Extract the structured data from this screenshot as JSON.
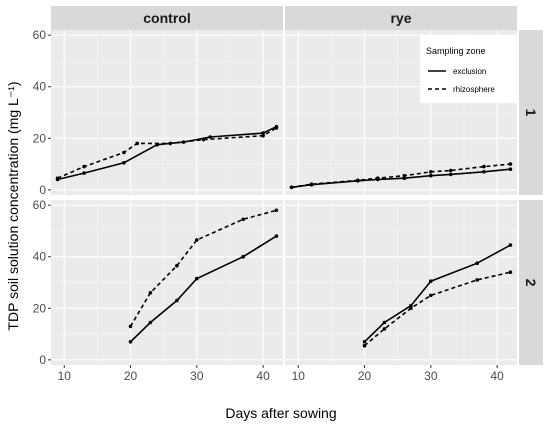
{
  "chart_data": {
    "type": "line",
    "xlabel": "Days after sowing",
    "ylabel": "TDP soil solution concentration (mg L⁻¹)",
    "xlim": [
      8,
      43
    ],
    "xticks": [
      10,
      20,
      30,
      40
    ],
    "ylim": [
      -2,
      62
    ],
    "yticks": [
      0,
      20,
      40,
      60
    ],
    "column_strips": [
      "control",
      "rye"
    ],
    "row_strips": [
      "1",
      "2"
    ],
    "legend": {
      "title": "Sampling zone",
      "position": "top-right",
      "entries": [
        "exclusion",
        "rhizosphere"
      ]
    },
    "grid": true,
    "colors": {
      "panel_bg": "#ebebeb",
      "grid_major": "#ffffff",
      "strip_bg": "#d9d9d9",
      "line": "#000000",
      "tick_text": "#4d4d4d"
    },
    "panels": [
      {
        "column": "control",
        "row": "1",
        "series": [
          {
            "name": "exclusion",
            "x": [
              9,
              13,
              19,
              24,
              28,
              32,
              40,
              42
            ],
            "y": [
              4,
              6.5,
              10.5,
              17.5,
              18.5,
              20.5,
              22,
              24.5
            ]
          },
          {
            "name": "rhizosphere",
            "x": [
              9,
              13,
              19,
              21,
              26,
              31,
              40,
              42
            ],
            "y": [
              4.5,
              9,
              14.5,
              18,
              18,
              19.5,
              21,
              24
            ]
          }
        ]
      },
      {
        "column": "rye",
        "row": "1",
        "series": [
          {
            "name": "exclusion",
            "x": [
              9,
              12,
              19,
              22,
              26,
              30,
              33,
              38,
              42
            ],
            "y": [
              1,
              2,
              3.5,
              4,
              4.5,
              5.5,
              6,
              7,
              8
            ]
          },
          {
            "name": "rhizosphere",
            "x": [
              9,
              12,
              19,
              22,
              26,
              30,
              33,
              38,
              42
            ],
            "y": [
              1,
              2.2,
              3.7,
              4.5,
              5.5,
              7,
              7.5,
              9,
              10
            ]
          }
        ]
      },
      {
        "column": "control",
        "row": "2",
        "series": [
          {
            "name": "exclusion",
            "x": [
              20,
              23,
              27,
              30,
              37,
              42
            ],
            "y": [
              7,
              14.5,
              23,
              31.5,
              40,
              48
            ]
          },
          {
            "name": "rhizosphere",
            "x": [
              20,
              23,
              27,
              30,
              37,
              42
            ],
            "y": [
              13,
              26,
              36.5,
              46.5,
              54.5,
              58
            ]
          }
        ]
      },
      {
        "column": "rye",
        "row": "2",
        "series": [
          {
            "name": "exclusion",
            "x": [
              20,
              23,
              27,
              30,
              37,
              42
            ],
            "y": [
              7,
              14.5,
              21,
              30.5,
              37.5,
              44.5
            ]
          },
          {
            "name": "rhizosphere",
            "x": [
              20,
              23,
              27,
              30,
              37,
              42
            ],
            "y": [
              5.5,
              12,
              20,
              25,
              31,
              34
            ]
          }
        ]
      }
    ]
  }
}
